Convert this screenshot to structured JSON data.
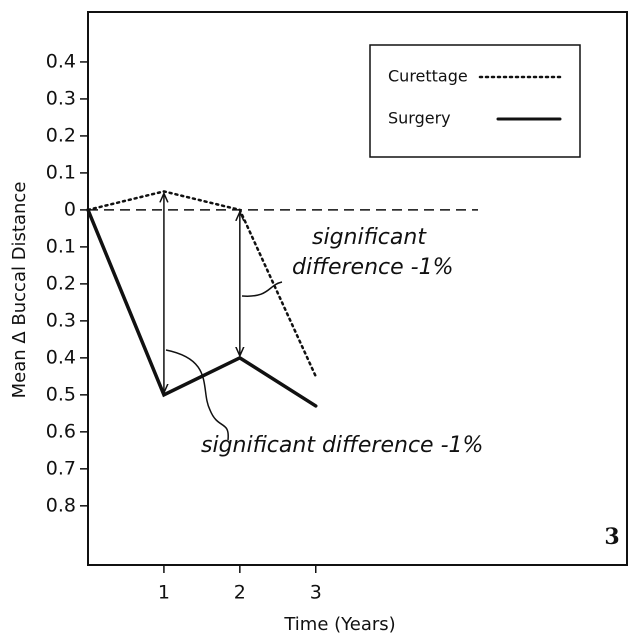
{
  "chart_data": {
    "type": "line",
    "x_label": "Time (Years)",
    "y_label": "Mean Δ Buccal Distance",
    "figure_label": "3",
    "x": [
      0,
      1,
      2,
      3
    ],
    "xlim": [
      0,
      7.1
    ],
    "xticks": [
      1,
      2,
      3
    ],
    "ylim": [
      -0.96,
      0.535
    ],
    "yticks": [
      0.4,
      0.3,
      0.2,
      0.1,
      0,
      {
        "value": -0.1,
        "label": "0.1"
      },
      {
        "value": -0.2,
        "label": "0.2"
      },
      {
        "value": -0.3,
        "label": "0.3"
      },
      {
        "value": -0.4,
        "label": "0.4"
      },
      {
        "value": -0.5,
        "label": "0.5"
      },
      {
        "value": -0.6,
        "label": "0.6"
      },
      {
        "value": -0.7,
        "label": "0.7"
      },
      {
        "value": -0.8,
        "label": "0.8"
      }
    ],
    "series": [
      {
        "name": "Curettage",
        "color": "#111111",
        "style": "dotted",
        "values": [
          0,
          0.05,
          0,
          -0.45
        ]
      },
      {
        "name": "Surgery",
        "color": "#111111",
        "style": "solid",
        "values": [
          0,
          -0.5,
          -0.4,
          -0.53
        ]
      }
    ],
    "annotations": [
      "significant",
      "difference -1%",
      "significant difference -1%"
    ],
    "legend": "upper right"
  }
}
